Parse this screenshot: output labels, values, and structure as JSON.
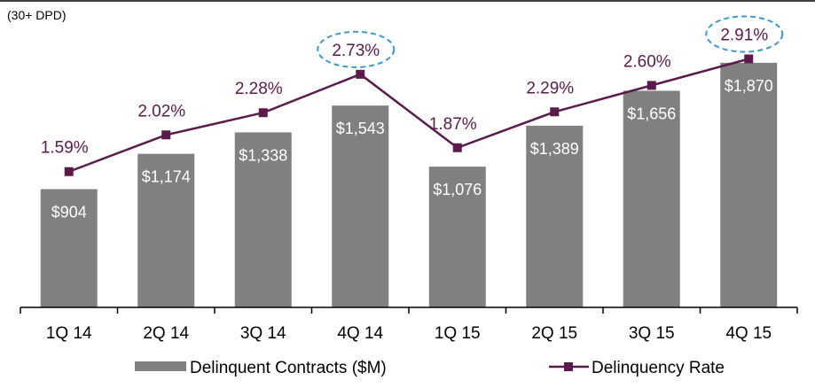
{
  "chart_data": {
    "type": "bar",
    "subtitle": "(30+ DPD)",
    "categories": [
      "1Q 14",
      "2Q 14",
      "3Q 14",
      "4Q 14",
      "1Q 15",
      "2Q 15",
      "3Q 15",
      "4Q 15"
    ],
    "series": [
      {
        "name": "Delinquent Contracts ($M)",
        "type": "bar",
        "values": [
          904,
          1174,
          1338,
          1543,
          1076,
          1389,
          1656,
          1870
        ],
        "labels": [
          "$904",
          "$1,174",
          "$1,338",
          "$1,543",
          "$1,076",
          "$1,389",
          "$1,656",
          "$1,870"
        ],
        "color": "#808080"
      },
      {
        "name": "Delinquency Rate",
        "type": "line",
        "values": [
          1.59,
          2.02,
          2.28,
          2.73,
          1.87,
          2.29,
          2.6,
          2.91
        ],
        "labels": [
          "1.59%",
          "2.02%",
          "2.28%",
          "2.73%",
          "1.87%",
          "2.29%",
          "2.60%",
          "2.91%"
        ],
        "color": "#5b1a4b",
        "highlighted_categories": [
          "4Q 14",
          "4Q 15"
        ]
      }
    ],
    "highlight_color": "#3a9ad0",
    "bar_ylim": [
      0,
      2350
    ],
    "rate_ylim": [
      0,
      3.6
    ],
    "legend": "bottom",
    "grid": false
  }
}
